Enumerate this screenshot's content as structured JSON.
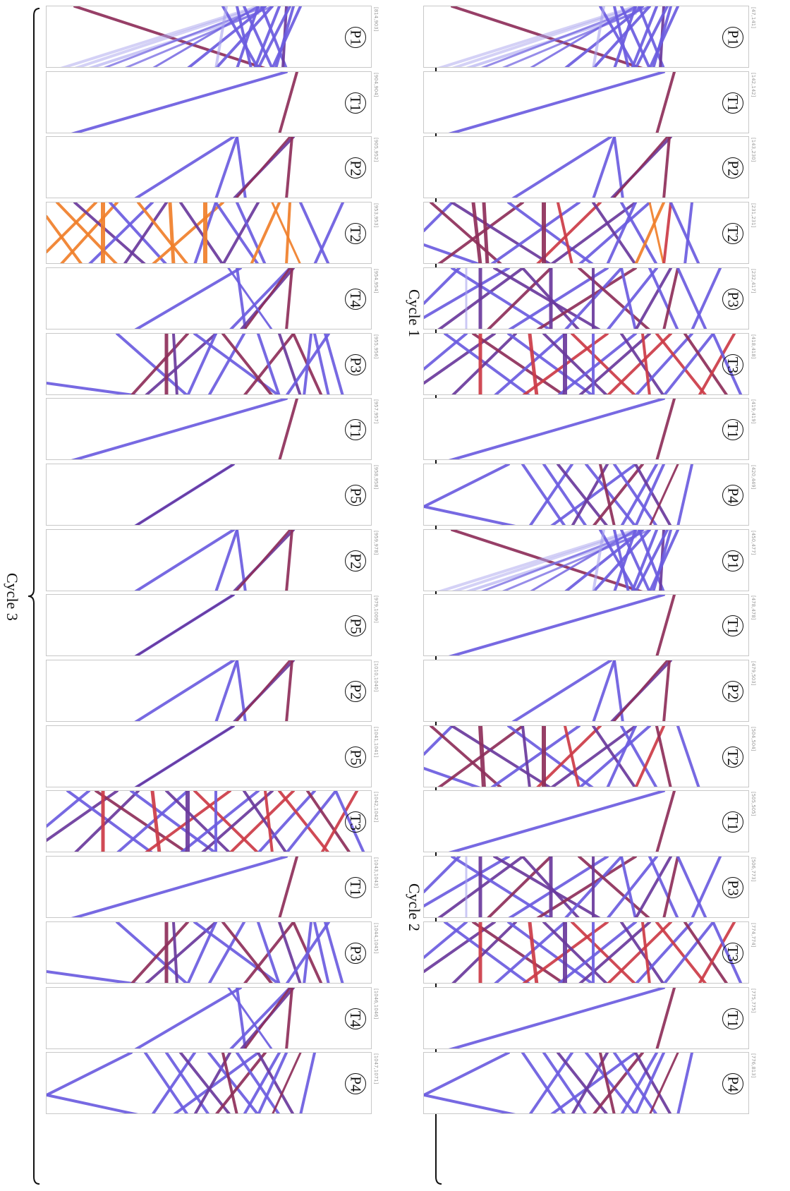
{
  "colors": {
    "blue": "#6b5ce0",
    "light_blue": "#a9a3ee",
    "purple": "#6a3a9c",
    "dark_red": "#8e2f5a",
    "red": "#cc3b46",
    "orange": "#f07f2a",
    "panel_border": "#c8c8c8"
  },
  "cycles": [
    {
      "label": "Cycle 1"
    },
    {
      "label": "Cycle 2"
    },
    {
      "label": "Cycle 3"
    }
  ],
  "columns": [
    {
      "panels": [
        {
          "label": "P1",
          "range": "[47,141]",
          "pattern": "P1"
        },
        {
          "label": "T1",
          "range": "[142,142]",
          "pattern": "T1"
        },
        {
          "label": "P2",
          "range": "[143,230]",
          "pattern": "P2"
        },
        {
          "label": "T2",
          "range": "[231,231]",
          "pattern": "T2a"
        },
        {
          "label": "P3",
          "range": "[232,417]",
          "pattern": "P3a"
        },
        {
          "label": "T3",
          "range": "[418,418]",
          "pattern": "T3"
        },
        {
          "label": "T1",
          "range": "[419,419]",
          "pattern": "T1"
        },
        {
          "label": "P4",
          "range": "[420,449]",
          "pattern": "P4"
        },
        {
          "label": "P1",
          "range": "[450,477]",
          "pattern": "P1"
        },
        {
          "label": "T1",
          "range": "[478,478]",
          "pattern": "T1"
        },
        {
          "label": "P2",
          "range": "[479,503]",
          "pattern": "P2"
        },
        {
          "label": "T2",
          "range": "[504,504]",
          "pattern": "T2b"
        },
        {
          "label": "T1",
          "range": "[505,505]",
          "pattern": "T1"
        },
        {
          "label": "P3",
          "range": "[506,773]",
          "pattern": "P3a"
        },
        {
          "label": "T3",
          "range": "[774,774]",
          "pattern": "T3"
        },
        {
          "label": "T1",
          "range": "[775,775]",
          "pattern": "T1"
        },
        {
          "label": "P4",
          "range": "[776,813]",
          "pattern": "P4"
        }
      ]
    },
    {
      "panels": [
        {
          "label": "P1",
          "range": "[814,903]",
          "pattern": "P1"
        },
        {
          "label": "T1",
          "range": "[904,904]",
          "pattern": "T1"
        },
        {
          "label": "P2",
          "range": "[905,952]",
          "pattern": "P2"
        },
        {
          "label": "T2",
          "range": "[953,953]",
          "pattern": "T2c"
        },
        {
          "label": "T4",
          "range": "[954,954]",
          "pattern": "T4"
        },
        {
          "label": "P3",
          "range": "[955,956]",
          "pattern": "P3b"
        },
        {
          "label": "T1",
          "range": "[957,957]",
          "pattern": "T1"
        },
        {
          "label": "P5",
          "range": "[958,958]",
          "pattern": "P5"
        },
        {
          "label": "P2",
          "range": "[959,978]",
          "pattern": "P2"
        },
        {
          "label": "P5",
          "range": "[979,1009]",
          "pattern": "P5"
        },
        {
          "label": "P2",
          "range": "[1010,1040]",
          "pattern": "P2"
        },
        {
          "label": "P5",
          "range": "[1041,1041]",
          "pattern": "P5"
        },
        {
          "label": "T3",
          "range": "[1042,1042]",
          "pattern": "T3"
        },
        {
          "label": "T1",
          "range": "[1043,1043]",
          "pattern": "T1"
        },
        {
          "label": "P3",
          "range": "[1044,1045]",
          "pattern": "P3b"
        },
        {
          "label": "T4",
          "range": "[1046,1046]",
          "pattern": "T4"
        },
        {
          "label": "P4",
          "range": "[1047,1071]",
          "pattern": "P4"
        }
      ]
    }
  ]
}
